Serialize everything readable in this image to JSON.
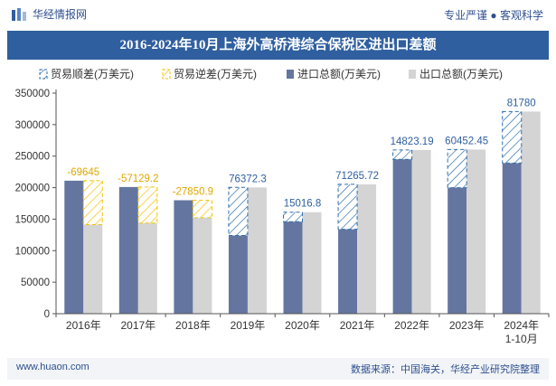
{
  "header": {
    "brand": "华经情报网",
    "tagline": "专业严谨 ● 客观科学",
    "title": "2016-2024年10月上海外高桥港综合保税区进出口差额"
  },
  "footer": {
    "website": "www.huaon.com",
    "source": "数据来源：中国海关，华经产业研究院整理"
  },
  "colors": {
    "import": "#6476a0",
    "export": "#d4d4d4",
    "surplus": "#2f6fad",
    "deficit": "#f2c200",
    "title_bg": "#2f5f9f"
  },
  "chart_data": {
    "type": "bar",
    "categories": [
      "2016年",
      "2017年",
      "2018年",
      "2019年",
      "2020年",
      "2021年",
      "2022年",
      "2023年",
      "2024年\n1-10月"
    ],
    "legend": [
      "贸易顺差(万美元)",
      "贸易逆差(万美元)",
      "进口总额(万美元)",
      "出口总额(万美元)"
    ],
    "series": [
      {
        "name": "进口总额(万美元)",
        "values": [
          211000,
          201000,
          180000,
          124000,
          146000,
          134000,
          245000,
          200000,
          239000
        ]
      },
      {
        "name": "出口总额(万美元)",
        "values": [
          141355,
          143871,
          152149,
          200372,
          161017,
          205266,
          259823,
          260452,
          320780
        ]
      }
    ],
    "balance": [
      {
        "value": -69645,
        "label": "-69645"
      },
      {
        "value": -57129.2,
        "label": "-57129.2"
      },
      {
        "value": -27850.9,
        "label": "-27850.9"
      },
      {
        "value": 76372.3,
        "label": "76372.3"
      },
      {
        "value": 15016.8,
        "label": "15016.8"
      },
      {
        "value": 71265.72,
        "label": "71265.72"
      },
      {
        "value": 14823.19,
        "label": "14823.19"
      },
      {
        "value": 60452.45,
        "label": "60452.45"
      },
      {
        "value": 81780,
        "label": "81780"
      }
    ],
    "ylim": [
      0,
      350000
    ],
    "yticks": [
      0,
      50000,
      100000,
      150000,
      200000,
      250000,
      300000,
      350000
    ],
    "legend_position": "top",
    "grid": false
  }
}
